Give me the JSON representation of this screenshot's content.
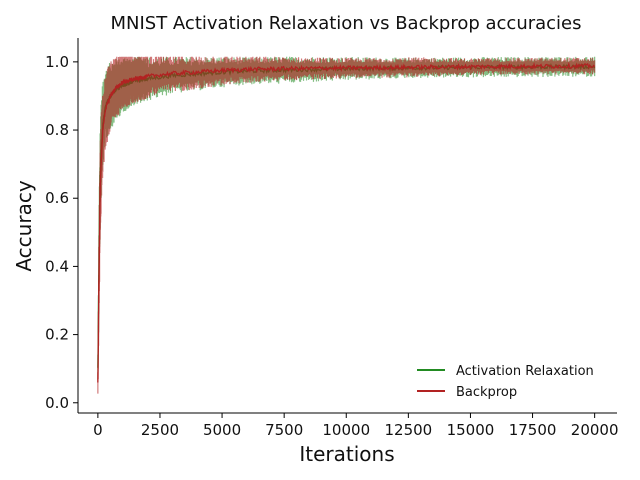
{
  "chart_data": {
    "type": "line",
    "title": "MNIST Activation Relaxation vs Backprop accuracies",
    "xlabel": "Iterations",
    "ylabel": "Accuracy",
    "xlim": [
      -800,
      20900
    ],
    "ylim": [
      -0.03,
      1.07
    ],
    "xticks": [
      0,
      2500,
      5000,
      7500,
      10000,
      12500,
      15000,
      17500,
      20000
    ],
    "yticks": [
      0.0,
      0.2,
      0.4,
      0.6,
      0.8,
      1.0
    ],
    "grid": false,
    "legend_position": "bottom-right",
    "series": [
      {
        "name": "Activation Relaxation",
        "color": "#228B22",
        "x": [
          0,
          50,
          100,
          200,
          300,
          500,
          750,
          1000,
          1500,
          2000,
          2500,
          3000,
          4000,
          5000,
          6000,
          7500,
          10000,
          12500,
          15000,
          17500,
          20000
        ],
        "mean": [
          0.1,
          0.45,
          0.7,
          0.82,
          0.87,
          0.9,
          0.92,
          0.93,
          0.945,
          0.95,
          0.955,
          0.96,
          0.965,
          0.97,
          0.973,
          0.976,
          0.98,
          0.982,
          0.984,
          0.985,
          0.986
        ],
        "spread": [
          0.05,
          0.15,
          0.15,
          0.13,
          0.11,
          0.1,
          0.09,
          0.08,
          0.07,
          0.065,
          0.06,
          0.055,
          0.05,
          0.045,
          0.04,
          0.04,
          0.035,
          0.03,
          0.03,
          0.03,
          0.03
        ]
      },
      {
        "name": "Backprop",
        "color": "#B22222",
        "x": [
          0,
          50,
          100,
          200,
          300,
          500,
          750,
          1000,
          1500,
          2000,
          2500,
          3000,
          4000,
          5000,
          6000,
          7500,
          10000,
          12500,
          15000,
          17500,
          20000
        ],
        "mean": [
          0.06,
          0.4,
          0.65,
          0.8,
          0.86,
          0.9,
          0.925,
          0.94,
          0.95,
          0.957,
          0.962,
          0.966,
          0.97,
          0.975,
          0.978,
          0.98,
          0.982,
          0.984,
          0.986,
          0.987,
          0.988
        ],
        "spread": [
          0.04,
          0.15,
          0.16,
          0.14,
          0.12,
          0.1,
          0.09,
          0.08,
          0.07,
          0.065,
          0.06,
          0.055,
          0.05,
          0.045,
          0.04,
          0.035,
          0.03,
          0.03,
          0.025,
          0.025,
          0.025
        ]
      }
    ]
  }
}
